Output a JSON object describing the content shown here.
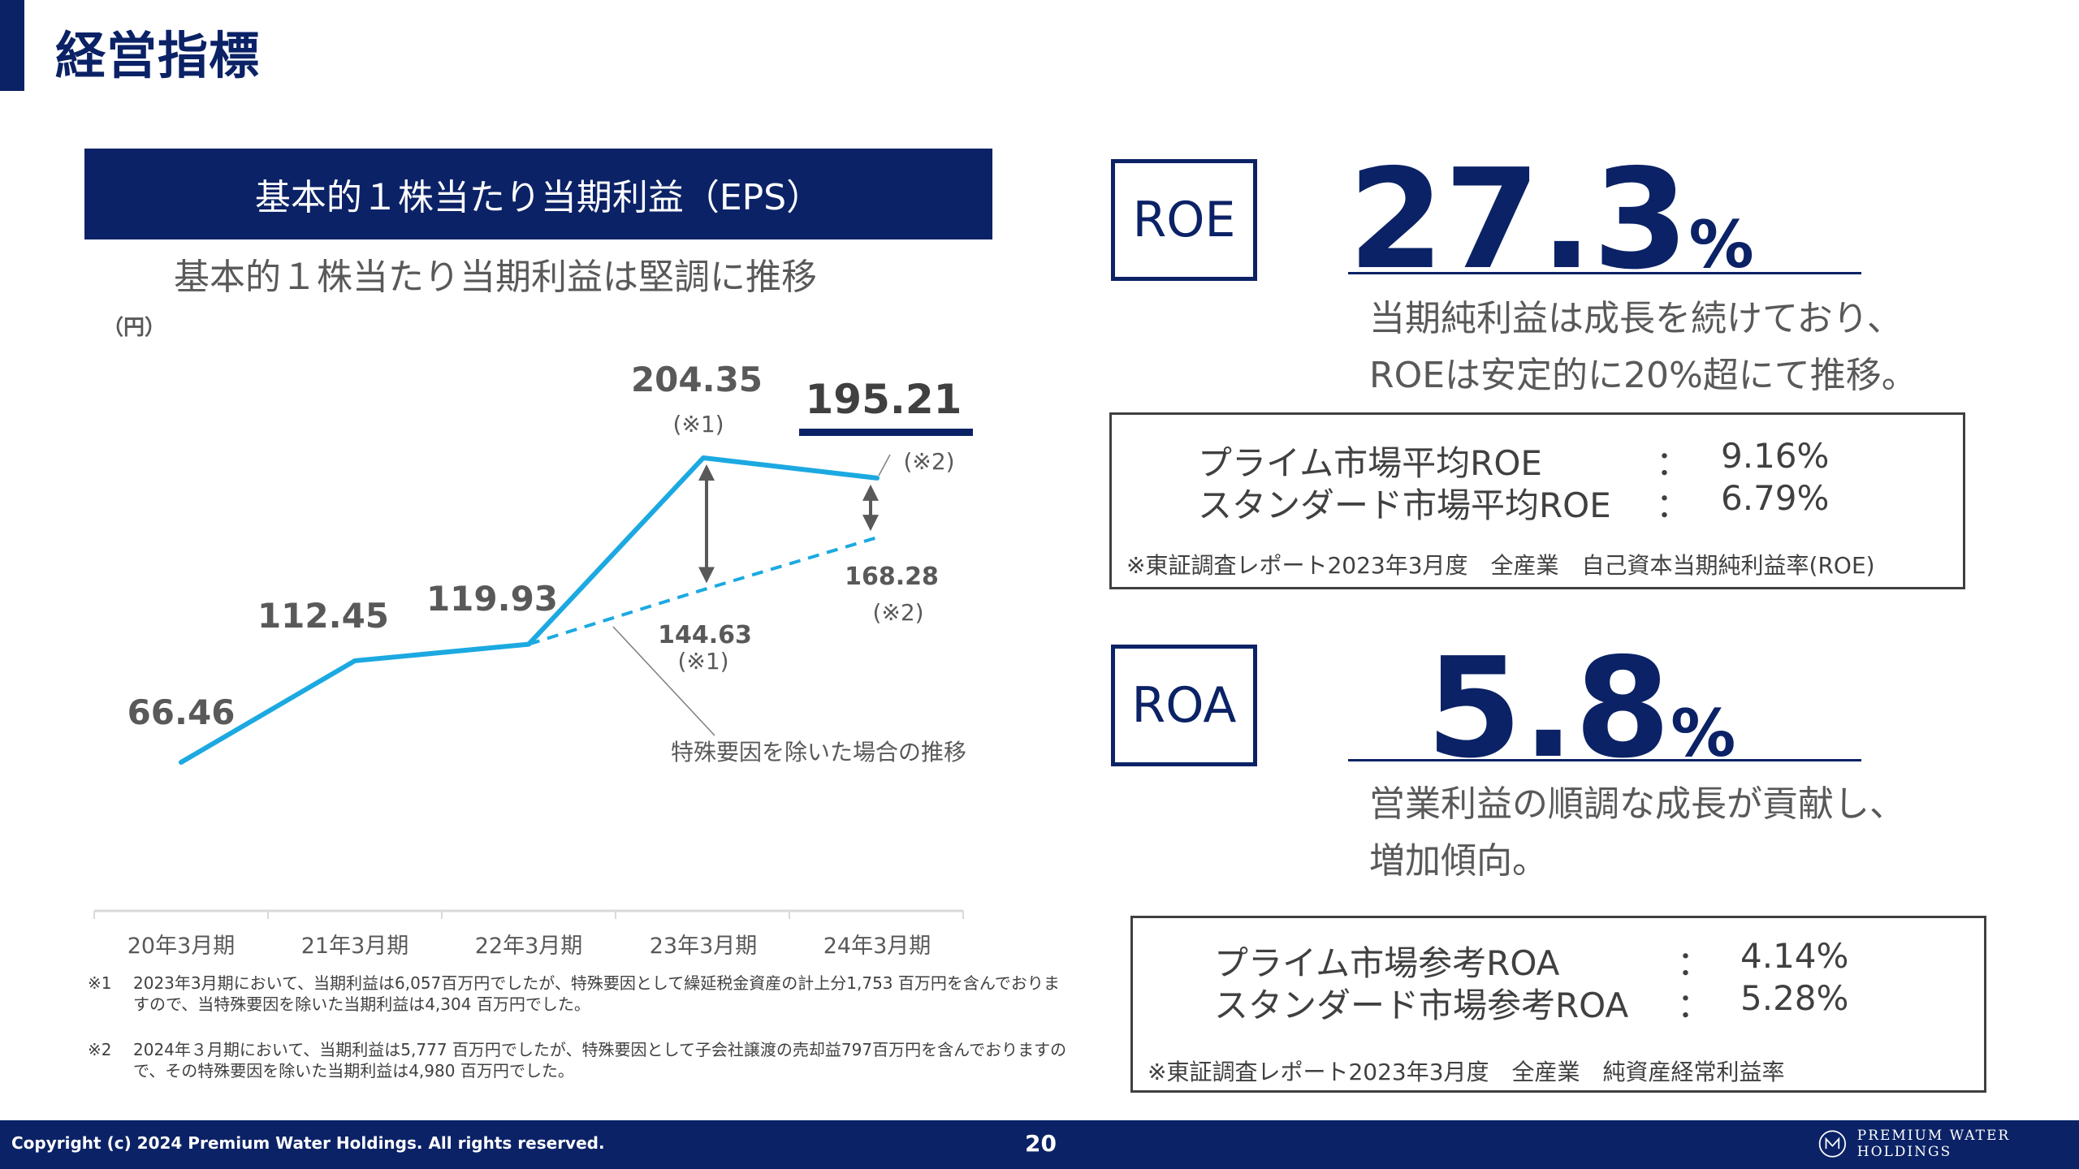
{
  "page": {
    "title": "経営指標",
    "number": "20",
    "copyright": "Copyright (c) 2024 Premium Water Holdings. All rights reserved.",
    "logo_text": "PREMIUM WATER HOLDINGS"
  },
  "eps": {
    "banner": "基本的１株当たり当期利益（EPS）",
    "subtitle": "基本的１株当たり当期利益は堅調に推移",
    "unit": "（円）",
    "note_marker_1": "(※1)",
    "note_marker_2": "(※2)",
    "dashed_caption": "特殊要因を除いた場合の推移",
    "footnotes": [
      {
        "mark": "※1",
        "text": "2023年3月期において、当期利益は6,057百万円でしたが、特殊要因として繰延税金資産の計上分1,753 百万円を含んでおりますので、当特殊要因を除いた当期利益は4,304 百万円でした。"
      },
      {
        "mark": "※2",
        "text": "2024年３月期において、当期利益は5,777 百万円でしたが、特殊要因として子会社譲渡の売却益797百万円を含んでおりますので、その特殊要因を除いた当期利益は4,980 百万円でした。"
      }
    ]
  },
  "chart_data": {
    "type": "line",
    "categories": [
      "20年3月期",
      "21年3月期",
      "22年3月期",
      "23年3月期",
      "24年3月期"
    ],
    "series": [
      {
        "values": [
          66.46,
          112.45,
          119.93,
          204.35,
          195.21
        ],
        "color": "#1ca9e1"
      },
      {
        "values": [
          null,
          null,
          119.93,
          144.63,
          168.28
        ],
        "color": "#1ca9e1",
        "style": "dashed"
      }
    ],
    "data_labels": [
      "66.46",
      "112.45",
      "119.93",
      "204.35",
      "195.21",
      "144.63",
      "168.28"
    ],
    "title": "",
    "ylabel": "（円）",
    "ylim": [
      40,
      230
    ],
    "grid": false,
    "legend": "none"
  },
  "roe": {
    "label": "ROE",
    "value": "27.3",
    "unit": "%",
    "desc_line1": "当期純利益は成長を続けており、",
    "desc_line2": "ROEは安定的に20%超にて推移。",
    "refs": [
      {
        "name": "プライム市場平均ROE",
        "colon": "：",
        "value": "9.16%"
      },
      {
        "name": "スタンダード市場平均ROE",
        "colon": "：",
        "value": "6.79%"
      }
    ],
    "note": "※東証調査レポート2023年3月度　全産業　自己資本当期純利益率(ROE)"
  },
  "roa": {
    "label": "ROA",
    "value": "5.8",
    "unit": "%",
    "desc_line1": "営業利益の順調な成長が貢献し、",
    "desc_line2": "増加傾向。",
    "refs": [
      {
        "name": "プライム市場参考ROA",
        "colon": "：",
        "value": "4.14%"
      },
      {
        "name": "スタンダード市場参考ROA",
        "colon": "：",
        "value": "5.28%"
      }
    ],
    "note": "※東証調査レポート2023年3月度　全産業　純資産経常利益率"
  },
  "colors": {
    "navy": "#0b2266",
    "line": "#1ca9e1",
    "arrow": "#595959"
  }
}
